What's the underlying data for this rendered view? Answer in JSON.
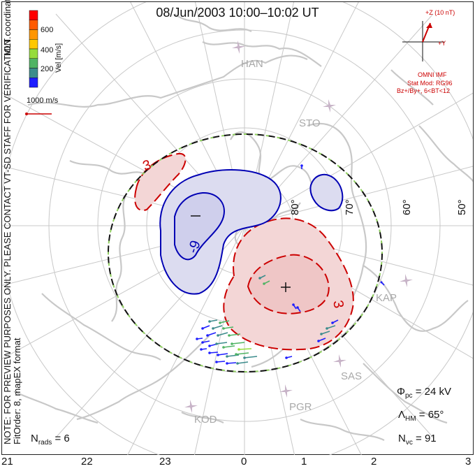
{
  "title": "08/Jun/2003 10:00–10:02 UT",
  "side_note": {
    "line1": "NOTE: FOR PREVIEW PURPOSES ONLY. PLEASE CONTACT VT-SD STAFF FOR VERIFICATION.",
    "line2": "FitOrder: 8, mapEX format",
    "line3": "MLT coordinates"
  },
  "colorbar": {
    "label": "Vel [m/s]",
    "ticks": [
      "600",
      "400",
      "200"
    ],
    "colors": [
      "#ff0000",
      "#ff5a00",
      "#ff9600",
      "#ffc800",
      "#96dc3c",
      "#50b464",
      "#3c8c8c",
      "#1e1eff"
    ]
  },
  "reference_vector": {
    "label": "1000 m/s",
    "color": "#cc0000"
  },
  "imf": {
    "z_label": "+Z (10 nT)",
    "y_label": "+Y",
    "source": "OMNI IMF",
    "model": "Stat Mod: RG96",
    "condition": "Bz+/By+, 6<BT<12",
    "color": "#cc0000"
  },
  "stations": [
    "HAN",
    "STO",
    "KAP",
    "SAS",
    "PGR",
    "KOD"
  ],
  "latitude_labels": [
    "80°",
    "70°",
    "60°",
    "50°"
  ],
  "mlt_labels": [
    "21",
    "22",
    "23",
    "0",
    "1",
    "2",
    "3"
  ],
  "contour_labels": {
    "pos": "3",
    "neg": "-9",
    "pos2": "3"
  },
  "potential_extrema": {
    "min": "−",
    "max": "+"
  },
  "stats": {
    "nrads_label": "N",
    "nrads_sub": "rads",
    "nrads_value": "= 6",
    "phi_label": "Φ",
    "phi_sub": "pc",
    "phi_value": "= 24 kV",
    "lambda_label": "Λ",
    "lambda_sub": "HM",
    "lambda_value": "= 65°",
    "nvc_label": "N",
    "nvc_sub": "vc",
    "nvc_value": "= 91"
  },
  "colors": {
    "positive_cell": "#cc0000",
    "positive_fill": "#f3d6d6",
    "negative_cell": "#0000b4",
    "negative_fill": "#dcdcf0",
    "coastline": "#c8c8c8",
    "grid": "#c8c8c8",
    "hm_boundary_dash": "#90d060"
  }
}
